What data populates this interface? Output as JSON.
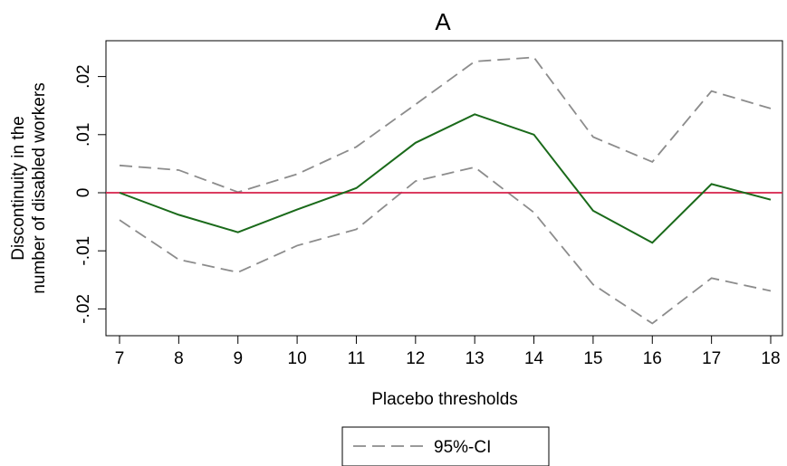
{
  "chart_data": {
    "type": "line",
    "title": "A",
    "xlabel": "Placebo thresholds",
    "ylabel_lines": [
      "Discontinuity in the",
      "number of disabled workers"
    ],
    "x": [
      7,
      8,
      9,
      10,
      11,
      12,
      13,
      14,
      15,
      16,
      17,
      18
    ],
    "xlim": [
      7,
      18
    ],
    "ylim": [
      -0.025,
      0.025
    ],
    "yticks": [
      {
        "value": -0.02,
        "label": "-.02"
      },
      {
        "value": -0.01,
        "label": "-.01"
      },
      {
        "value": 0,
        "label": "0"
      },
      {
        "value": 0.01,
        "label": ".01"
      },
      {
        "value": 0.02,
        "label": ".02"
      }
    ],
    "reference_line": {
      "y": 0,
      "color": "#d6204a"
    },
    "series": [
      {
        "key": "estimate",
        "style": "solid",
        "color": "#1a6a1a",
        "values": [
          0.0,
          -0.0038,
          -0.0068,
          -0.0029,
          0.0008,
          0.0086,
          0.0135,
          0.01,
          -0.0031,
          -0.0086,
          0.0015,
          -0.0012
        ]
      },
      {
        "key": "ci_upper",
        "name": "95%-CI",
        "style": "dashed",
        "color": "#8c8c8c",
        "values": [
          0.0047,
          0.0039,
          0.0001,
          0.0032,
          0.0079,
          0.0152,
          0.0226,
          0.0233,
          0.0096,
          0.0053,
          0.0175,
          0.0145
        ]
      },
      {
        "key": "ci_lower",
        "name": "95%-CI",
        "style": "dashed",
        "color": "#8c8c8c",
        "values": [
          -0.0047,
          -0.0115,
          -0.0137,
          -0.0091,
          -0.0063,
          0.002,
          0.0044,
          -0.0034,
          -0.0158,
          -0.0225,
          -0.0147,
          -0.0169
        ]
      }
    ],
    "legend": {
      "label": "95%-CI",
      "position": "bottom-center"
    },
    "grid": false
  }
}
